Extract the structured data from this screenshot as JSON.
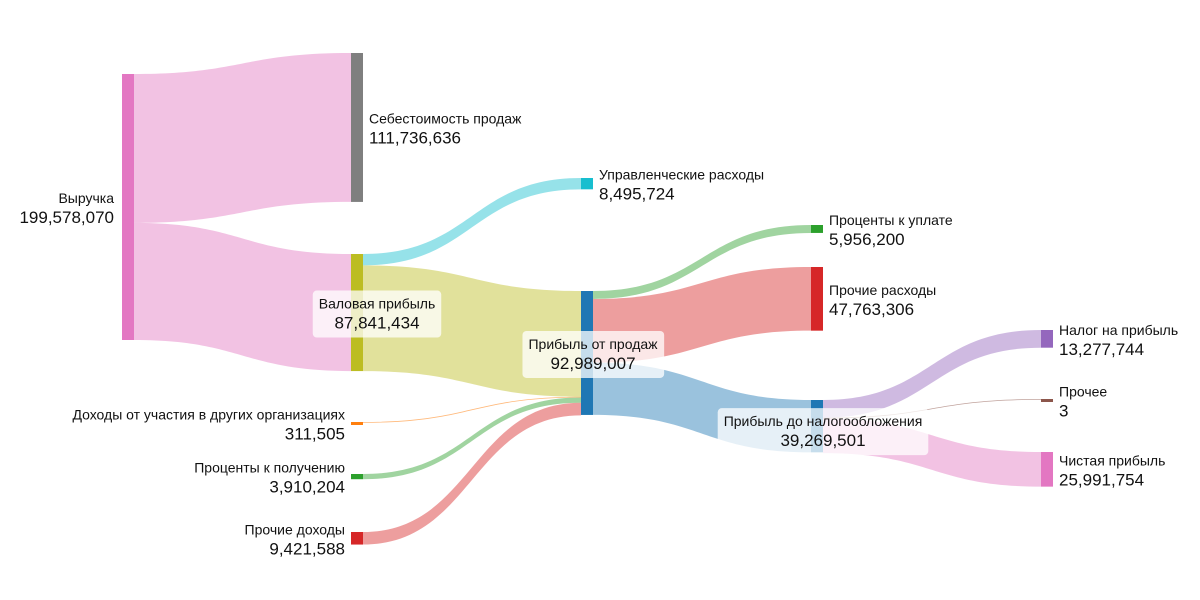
{
  "chart_data": {
    "type": "sankey",
    "nodes": [
      {
        "id": "revenue",
        "label": "Выручка",
        "value": "199,578,070",
        "color": "#e377c2"
      },
      {
        "id": "cogs",
        "label": "Себестоимость продаж",
        "value": "111,736,636",
        "color": "#7f7f7f"
      },
      {
        "id": "gross",
        "label": "Валовая прибыль",
        "value": "87,841,434",
        "color": "#bcbd22"
      },
      {
        "id": "admin",
        "label": "Управленческие расходы",
        "value": "8,495,724",
        "color": "#17becf"
      },
      {
        "id": "sales_profit",
        "label": "Прибыль от продаж",
        "value": "92,989,007",
        "color": "#1f77b4"
      },
      {
        "id": "participation",
        "label": "Доходы от участия в других организациях",
        "value": "311,505",
        "color": "#ff7f0e"
      },
      {
        "id": "int_income",
        "label": "Проценты к получению",
        "value": "3,910,204",
        "color": "#2ca02c"
      },
      {
        "id": "other_income",
        "label": "Прочие доходы",
        "value": "9,421,588",
        "color": "#d62728"
      },
      {
        "id": "int_paid",
        "label": "Проценты к уплате",
        "value": "5,956,200",
        "color": "#2ca02c"
      },
      {
        "id": "other_exp",
        "label": "Прочие расходы",
        "value": "47,763,306",
        "color": "#d62728"
      },
      {
        "id": "ebt",
        "label": "Прибыль до налогообложения",
        "value": "39,269,501",
        "color": "#1f77b4"
      },
      {
        "id": "tax",
        "label": "Налог на прибыль",
        "value": "13,277,744",
        "color": "#9467bd"
      },
      {
        "id": "other",
        "label": "Прочее",
        "value": "3",
        "color": "#8c564b"
      },
      {
        "id": "net",
        "label": "Чистая прибыль",
        "value": "25,991,754",
        "color": "#e377c2"
      }
    ],
    "links": [
      {
        "source": "revenue",
        "target": "cogs",
        "value": 111736636
      },
      {
        "source": "revenue",
        "target": "gross",
        "value": 87841434
      },
      {
        "source": "gross",
        "target": "admin",
        "value": 8495724
      },
      {
        "source": "gross",
        "target": "sales_profit",
        "value": 79345710
      },
      {
        "source": "participation",
        "target": "sales_profit",
        "value": 311505
      },
      {
        "source": "int_income",
        "target": "sales_profit",
        "value": 3910204
      },
      {
        "source": "other_income",
        "target": "sales_profit",
        "value": 9421588
      },
      {
        "source": "sales_profit",
        "target": "int_paid",
        "value": 5956200
      },
      {
        "source": "sales_profit",
        "target": "other_exp",
        "value": 47763306
      },
      {
        "source": "sales_profit",
        "target": "ebt",
        "value": 39269501
      },
      {
        "source": "ebt",
        "target": "tax",
        "value": 13277744
      },
      {
        "source": "ebt",
        "target": "other",
        "value": 3
      },
      {
        "source": "ebt",
        "target": "net",
        "value": 25991754
      }
    ]
  }
}
